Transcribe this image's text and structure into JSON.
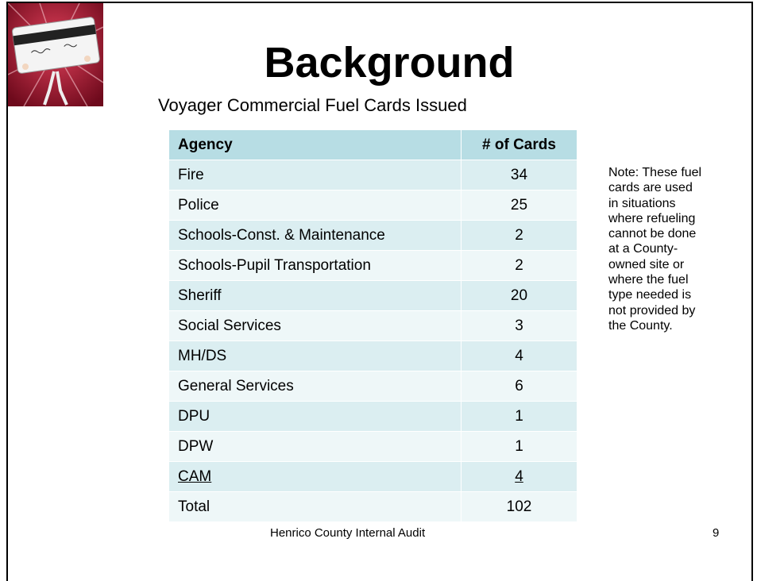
{
  "slide": {
    "title": "Background",
    "subtitle": "Voyager Commercial Fuel Cards Issued",
    "table": {
      "header": [
        "Agency",
        "# of Cards"
      ],
      "rows": [
        [
          "Fire",
          34
        ],
        [
          "Police",
          25
        ],
        [
          "Schools-Const. & Maintenance",
          2
        ],
        [
          "Schools-Pupil Transportation",
          2
        ],
        [
          "Sheriff",
          20
        ],
        [
          "Social Services",
          3
        ],
        [
          "MH/DS",
          4
        ],
        [
          "General Services",
          6
        ],
        [
          "DPU",
          1
        ],
        [
          "DPW",
          1
        ],
        [
          "CAM",
          4
        ],
        [
          "Total",
          102
        ]
      ]
    },
    "note": [
      "Note: These fuel",
      "cards are used",
      "in situations",
      "where refueling",
      "cannot be done",
      "at a County-",
      "owned site or",
      "where the fuel",
      "type needed is",
      "not provided by",
      "the County."
    ],
    "footer": "Henrico County Internal Audit",
    "page_number": 9
  }
}
